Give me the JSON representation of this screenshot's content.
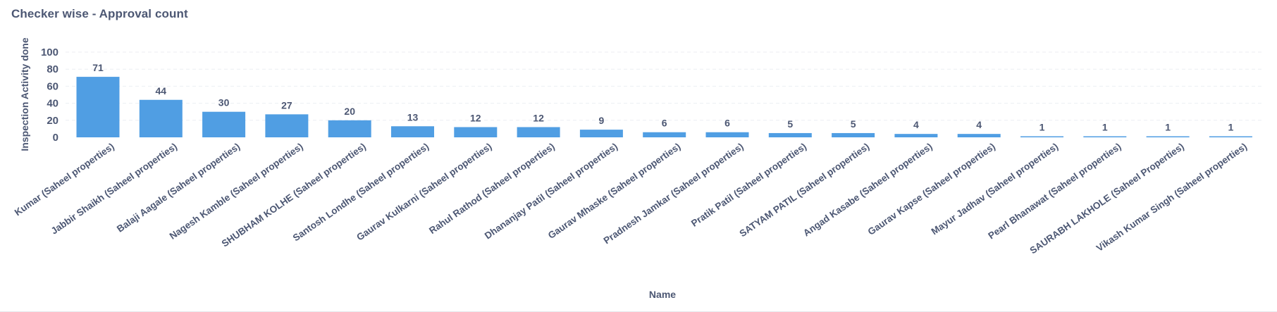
{
  "card": {
    "title": "Checker wise - Approval count"
  },
  "colors": {
    "bar": "#509ee3",
    "text": "#4c5773",
    "grid": "#eceef2"
  },
  "chart_data": {
    "type": "bar",
    "title": "Checker wise - Approval count",
    "xlabel": "Name",
    "ylabel": "Inspection Activity done",
    "ylim": [
      0,
      100
    ],
    "yticks": [
      0,
      20,
      40,
      60,
      80,
      100
    ],
    "grid": true,
    "categories": [
      "Kumar (Saheel properties)",
      "Jabbir Shaikh (Saheel properties)",
      "Balaji Aagale (Saheel properties)",
      "Nagesh Kamble (Saheel properties)",
      "SHUBHAM KOLHE (Saheel properties)",
      "Santosh Londhe (Saheel properties)",
      "Gaurav Kulkarni (Saheel properties)",
      "Rahul Rathod (Saheel properties)",
      "Dhananjay Patil (Saheel properties)",
      "Gaurav Mhaske (Saheel properties)",
      "Pradnesh Jamkar (Saheel properties)",
      "Pratik Patil (Saheel properties)",
      "SATYAM PATIL (Saheel properties)",
      "Angad Kasabe (Saheel properties)",
      "Gaurav Kapse (Saheel properties)",
      "Mayur Jadhav (Saheel properties)",
      "Pearl Bhanawat (Saheel properties)",
      "SAURABH LAKHOLE (Saheel Properties)",
      "Vikash Kumar Singh (Saheel properties)"
    ],
    "values": [
      71,
      44,
      30,
      27,
      20,
      13,
      12,
      12,
      9,
      6,
      6,
      5,
      5,
      4,
      4,
      1,
      1,
      1,
      1
    ]
  }
}
